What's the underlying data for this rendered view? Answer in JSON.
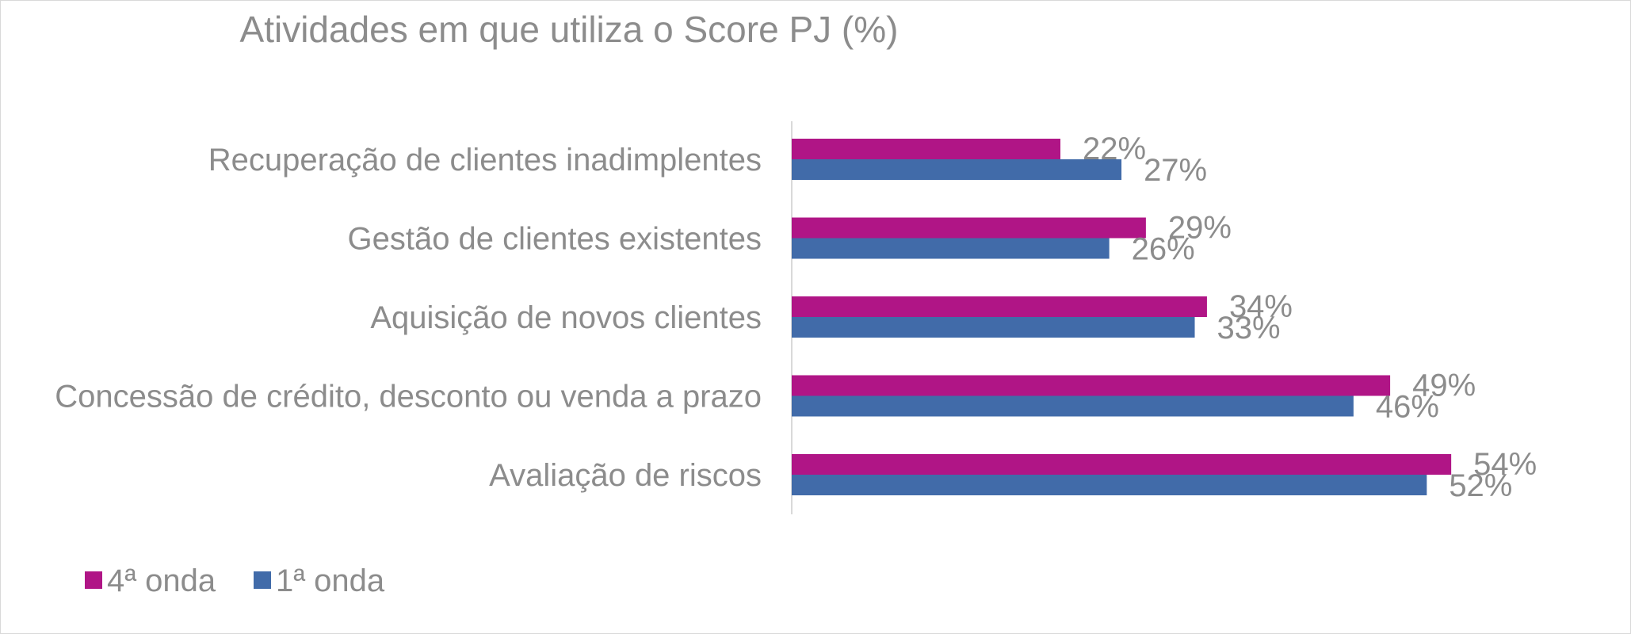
{
  "chart_data": {
    "type": "bar",
    "orientation": "horizontal",
    "title": "Atividades em que utiliza o Score PJ (%)",
    "xlabel": "",
    "ylabel": "",
    "xlim": [
      0,
      60
    ],
    "grid": false,
    "legend_position": "bottom-left",
    "categories": [
      "Recuperação de clientes inadimplentes",
      "Gestão de clientes existentes",
      "Aquisição de novos clientes",
      "Concessão de crédito, desconto ou venda a prazo",
      "Avaliação de riscos"
    ],
    "series": [
      {
        "name": "4ª onda",
        "color": "#b01586",
        "values": [
          22,
          29,
          34,
          49,
          54
        ],
        "labels": [
          "22%",
          "29%",
          "34%",
          "49%",
          "54%"
        ]
      },
      {
        "name": "1ª onda",
        "color": "#416ba9",
        "values": [
          27,
          26,
          33,
          46,
          52
        ],
        "labels": [
          "27%",
          "26%",
          "33%",
          "46%",
          "52%"
        ]
      }
    ]
  }
}
